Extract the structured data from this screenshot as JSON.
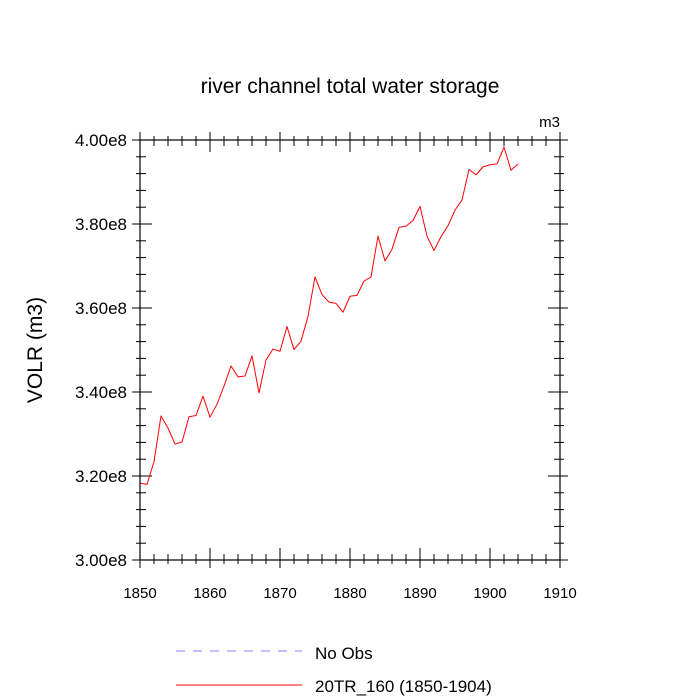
{
  "chart_data": {
    "type": "line",
    "title": "river channel total water storage",
    "units_label": "m3",
    "xlabel": "",
    "ylabel": "VOLR  (m3)",
    "xlim": [
      1850,
      1910
    ],
    "ylim": [
      300000000.0,
      400000000.0
    ],
    "x_ticks": [
      1850,
      1860,
      1870,
      1880,
      1890,
      1900,
      1910
    ],
    "x_tick_labels": [
      "1850",
      "1860",
      "1870",
      "1880",
      "1890",
      "1900",
      "1910"
    ],
    "y_ticks": [
      300000000.0,
      320000000.0,
      340000000.0,
      360000000.0,
      380000000.0,
      400000000.0
    ],
    "y_tick_labels": [
      "3.00e8",
      "3.20e8",
      "3.40e8",
      "3.60e8",
      "3.80e8",
      "4.00e8"
    ],
    "legend": [
      {
        "label": "No Obs",
        "color": "#8080ff",
        "style": "dashed"
      },
      {
        "label": "20TR_160 (1850-1904)",
        "color": "#ff0000",
        "style": "solid"
      }
    ],
    "series": [
      {
        "name": "20TR_160 (1850-1904)",
        "color": "#ff0000",
        "x": [
          1850,
          1851,
          1852,
          1853,
          1854,
          1855,
          1856,
          1857,
          1858,
          1859,
          1860,
          1861,
          1862,
          1863,
          1864,
          1865,
          1866,
          1867,
          1868,
          1869,
          1870,
          1871,
          1872,
          1873,
          1874,
          1875,
          1876,
          1877,
          1878,
          1879,
          1880,
          1881,
          1882,
          1883,
          1884,
          1885,
          1886,
          1887,
          1888,
          1889,
          1890,
          1891,
          1892,
          1893,
          1894,
          1895,
          1896,
          1897,
          1898,
          1899,
          1900,
          1901,
          1902,
          1903,
          1904
        ],
        "values": [
          318300000.0,
          318000000.0,
          323400000.0,
          334300000.0,
          331400000.0,
          327600000.0,
          328100000.0,
          334100000.0,
          334400000.0,
          339000000.0,
          334000000.0,
          337100000.0,
          341400000.0,
          346200000.0,
          343600000.0,
          343800000.0,
          348600000.0,
          339800000.0,
          347600000.0,
          350200000.0,
          349700000.0,
          355600000.0,
          350100000.0,
          352100000.0,
          358000000.0,
          367400000.0,
          363200000.0,
          361400000.0,
          361100000.0,
          359000000.0,
          362800000.0,
          363000000.0,
          366400000.0,
          367400000.0,
          377100000.0,
          371200000.0,
          374000000.0,
          379200000.0,
          379500000.0,
          380800000.0,
          384200000.0,
          377100000.0,
          373700000.0,
          377000000.0,
          379600000.0,
          383300000.0,
          385700000.0,
          393000000.0,
          391700000.0,
          393600000.0,
          394100000.0,
          394300000.0,
          398300000.0,
          392800000.0,
          394300000.0
        ]
      }
    ]
  }
}
